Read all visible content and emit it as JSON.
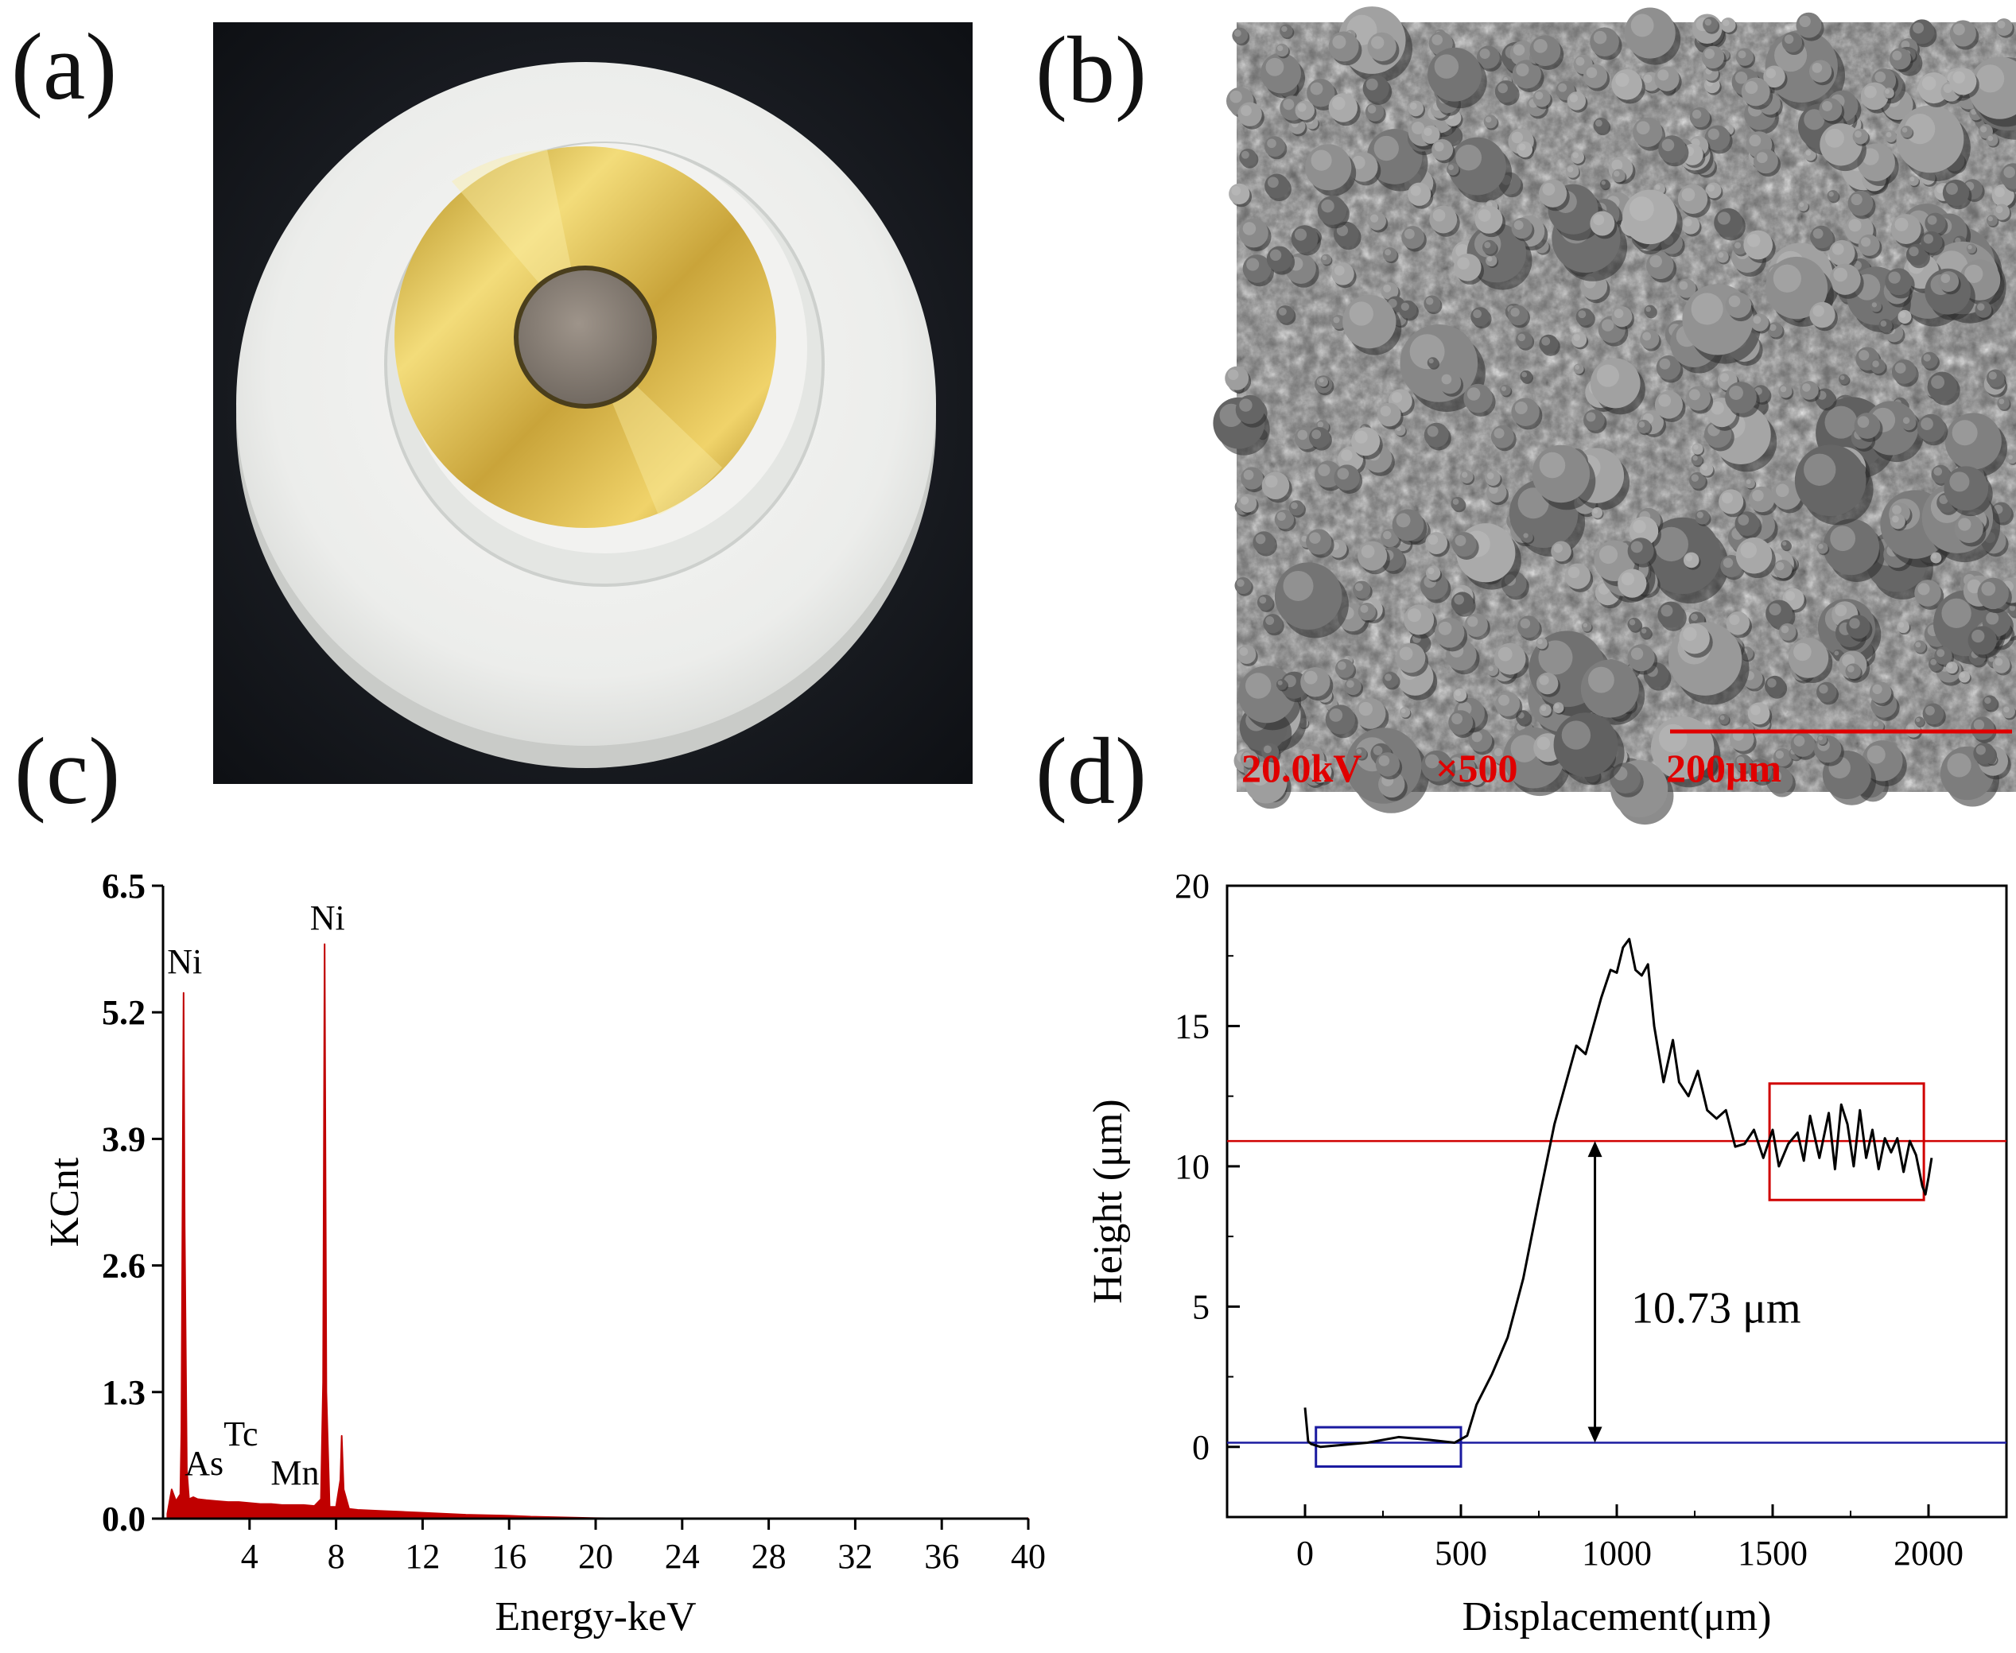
{
  "figure": {
    "panels": {
      "a": {
        "label": "(a)"
      },
      "b": {
        "label": "(b)",
        "sem_voltage": "20.0kV",
        "sem_magnification": "×500",
        "sem_scalebar": "200μm"
      },
      "c": {
        "label": "(c)"
      },
      "d": {
        "label": "(d)"
      }
    }
  },
  "colors": {
    "spectrum": "#c00000",
    "sem_annotation": "#e00000",
    "red_line": "#d00000",
    "blue_line": "#1a1aa0",
    "profile": "#000000"
  },
  "chart_data": [
    {
      "panel": "c",
      "type": "area",
      "xlabel": "Energy-keV",
      "ylabel": "KCnt",
      "xlim": [
        0,
        40
      ],
      "ylim": [
        0,
        6.5
      ],
      "xticks": [
        4,
        8,
        12,
        16,
        20,
        24,
        28,
        32,
        36,
        40
      ],
      "yticks": [
        0.0,
        1.3,
        2.6,
        3.9,
        5.2,
        6.5
      ],
      "ytick_labels": [
        "0.0",
        "1.3",
        "2.6",
        "3.9",
        "5.2",
        "6.5"
      ],
      "series": [
        {
          "name": "EDS spectrum",
          "x": [
            0.2,
            0.4,
            0.6,
            0.8,
            0.85,
            0.95,
            1.0,
            1.1,
            1.2,
            1.4,
            1.6,
            2.0,
            2.5,
            3.0,
            3.5,
            4.0,
            4.5,
            5.0,
            5.5,
            6.0,
            6.5,
            7.0,
            7.3,
            7.4,
            7.47,
            7.55,
            7.7,
            8.0,
            8.2,
            8.26,
            8.35,
            8.6,
            9.0,
            10,
            11,
            12,
            13,
            14,
            15,
            16,
            17,
            18,
            19,
            20,
            22,
            26,
            30,
            36,
            40
          ],
          "y": [
            0.05,
            0.3,
            0.18,
            0.25,
            0.9,
            5.4,
            3.0,
            0.5,
            0.2,
            0.22,
            0.2,
            0.19,
            0.18,
            0.17,
            0.17,
            0.16,
            0.15,
            0.15,
            0.14,
            0.14,
            0.14,
            0.13,
            0.2,
            1.4,
            5.9,
            1.3,
            0.12,
            0.12,
            0.4,
            0.85,
            0.3,
            0.1,
            0.09,
            0.08,
            0.07,
            0.06,
            0.05,
            0.04,
            0.035,
            0.03,
            0.02,
            0.015,
            0.01,
            0.005,
            0.003,
            0.002,
            0.001,
            0.0,
            0.0
          ]
        }
      ],
      "annotations": [
        {
          "text": "Ni",
          "x": 1.0,
          "y": 5.6
        },
        {
          "text": "Ni",
          "x": 7.6,
          "y": 6.05
        },
        {
          "text": "As",
          "x": 1.9,
          "y": 0.45
        },
        {
          "text": "Tc",
          "x": 3.6,
          "y": 0.75
        },
        {
          "text": "Mn",
          "x": 6.1,
          "y": 0.35
        }
      ]
    },
    {
      "panel": "d",
      "type": "line",
      "xlabel": "Displacement(μm)",
      "ylabel": "Height (μm)",
      "xlim": [
        -250,
        2250
      ],
      "ylim": [
        -2.5,
        20
      ],
      "xticks": [
        0,
        500,
        1000,
        1500,
        2000
      ],
      "yticks": [
        0,
        5,
        10,
        15,
        20
      ],
      "series": [
        {
          "name": "Height profile",
          "x": [
            0,
            10,
            20,
            50,
            100,
            200,
            300,
            400,
            480,
            520,
            550,
            600,
            650,
            700,
            750,
            800,
            850,
            870,
            900,
            950,
            980,
            1000,
            1020,
            1040,
            1060,
            1080,
            1100,
            1120,
            1150,
            1180,
            1200,
            1230,
            1260,
            1290,
            1320,
            1350,
            1380,
            1410,
            1440,
            1470,
            1500,
            1520,
            1550,
            1580,
            1600,
            1620,
            1650,
            1680,
            1700,
            1720,
            1740,
            1760,
            1780,
            1800,
            1820,
            1840,
            1860,
            1880,
            1900,
            1920,
            1940,
            1960,
            1980,
            1990,
            2000,
            2010
          ],
          "y": [
            1.4,
            0.2,
            0.1,
            0.0,
            0.05,
            0.15,
            0.35,
            0.25,
            0.15,
            0.4,
            1.5,
            2.6,
            3.9,
            6.0,
            8.8,
            11.5,
            13.5,
            14.3,
            14.0,
            16.0,
            17.0,
            16.9,
            17.8,
            18.1,
            17.0,
            16.8,
            17.2,
            15.0,
            13.0,
            14.5,
            13.0,
            12.5,
            13.4,
            12.0,
            11.7,
            12.0,
            10.7,
            10.8,
            11.3,
            10.3,
            11.3,
            10.0,
            10.8,
            11.2,
            10.2,
            11.8,
            10.3,
            11.9,
            9.9,
            12.2,
            11.5,
            10.0,
            12.0,
            10.3,
            11.3,
            9.9,
            11.0,
            10.5,
            11.0,
            9.8,
            10.9,
            10.4,
            9.3,
            9.0,
            9.6,
            10.3
          ]
        }
      ],
      "reference_lines": [
        {
          "name": "red level",
          "y": 10.9,
          "color": "#d00000"
        },
        {
          "name": "blue level",
          "y": 0.15,
          "color": "#1a1aa0"
        }
      ],
      "highlight_boxes": [
        {
          "name": "blue box",
          "x": [
            35,
            500
          ],
          "y": [
            -0.7,
            0.7
          ],
          "color": "#1a1aa0"
        },
        {
          "name": "red box",
          "x": [
            1490,
            1985
          ],
          "y": [
            8.8,
            12.95
          ],
          "color": "#d00000"
        }
      ],
      "arrow": {
        "x": 930,
        "y": [
          0.15,
          10.9
        ]
      },
      "annotation": {
        "text": "10.73 μm",
        "x": 1000,
        "y": 5
      }
    }
  ]
}
